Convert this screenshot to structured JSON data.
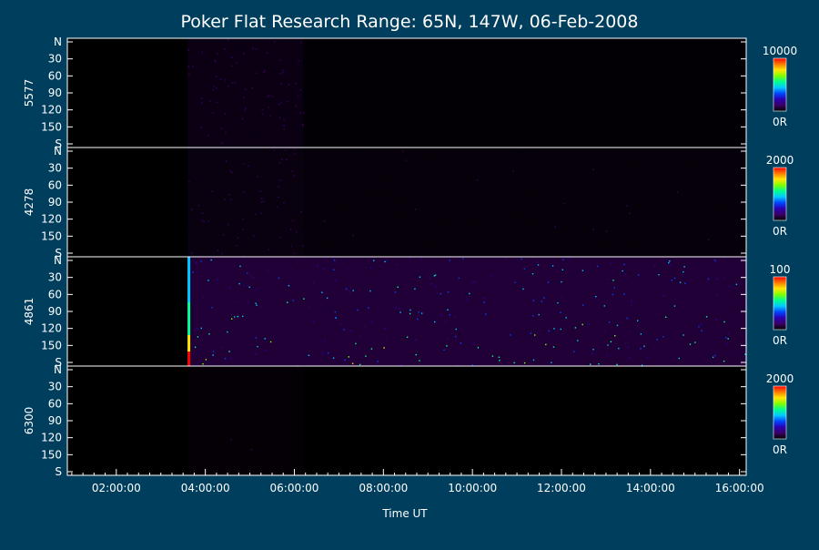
{
  "chart_data": {
    "type": "heatmap",
    "title": "Poker Flat Research Range: 65N, 147W, 06-Feb-2008",
    "xlabel": "Time UT",
    "x_ticks": [
      "02:00:00",
      "04:00:00",
      "06:00:00",
      "08:00:00",
      "10:00:00",
      "12:00:00",
      "14:00:00",
      "16:00:00"
    ],
    "x_range_hours": [
      0.9,
      16.15
    ],
    "y_ticks": [
      "N",
      "30",
      "60",
      "90",
      "120",
      "150",
      "S"
    ],
    "panels": [
      {
        "wavelength": "5577",
        "colorbar_max": "10000",
        "colorbar_min": "0R",
        "intensity_profile": [
          {
            "from_hour": 0.9,
            "to_hour": 3.6,
            "level": 0.0
          },
          {
            "from_hour": 3.6,
            "to_hour": 6.2,
            "level": 0.12
          },
          {
            "from_hour": 6.2,
            "to_hour": 16.15,
            "level": 0.03
          }
        ]
      },
      {
        "wavelength": "4278",
        "colorbar_max": "2000",
        "colorbar_min": "0R",
        "intensity_profile": [
          {
            "from_hour": 0.9,
            "to_hour": 3.6,
            "level": 0.0
          },
          {
            "from_hour": 3.6,
            "to_hour": 6.2,
            "level": 0.1
          },
          {
            "from_hour": 6.2,
            "to_hour": 16.15,
            "level": 0.06
          }
        ]
      },
      {
        "wavelength": "4861",
        "colorbar_max": "100",
        "colorbar_min": "0R",
        "intensity_profile": [
          {
            "from_hour": 0.9,
            "to_hour": 3.6,
            "level": 0.0
          },
          {
            "from_hour": 3.6,
            "to_hour": 16.15,
            "level": 0.35
          }
        ]
      },
      {
        "wavelength": "6300",
        "colorbar_max": "2000",
        "colorbar_min": "0R",
        "intensity_profile": [
          {
            "from_hour": 0.9,
            "to_hour": 3.6,
            "level": 0.0
          },
          {
            "from_hour": 3.6,
            "to_hour": 6.2,
            "level": 0.04
          },
          {
            "from_hour": 6.2,
            "to_hour": 16.15,
            "level": 0.0
          }
        ]
      }
    ],
    "colormap": [
      "#000000",
      "#3a0063",
      "#2a00b0",
      "#0044ff",
      "#00c8ff",
      "#00ff90",
      "#80ff00",
      "#ffe600",
      "#ff7a00",
      "#ff0000"
    ]
  }
}
